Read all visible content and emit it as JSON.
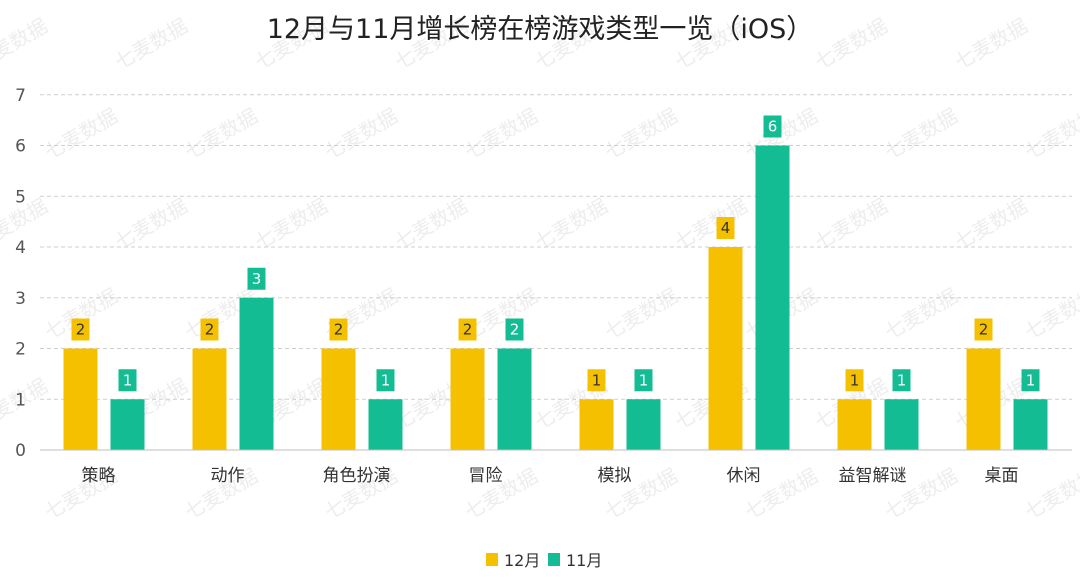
{
  "chart_data": {
    "type": "bar",
    "title": "12月与11月增长榜在榜游戏类型一览（iOS）",
    "categories": [
      "策略",
      "动作",
      "角色扮演",
      "冒险",
      "模拟",
      "休闲",
      "益智解谜",
      "桌面"
    ],
    "series": [
      {
        "name": "12月",
        "color": "#F5C000",
        "values": [
          2,
          2,
          2,
          2,
          1,
          4,
          1,
          2
        ]
      },
      {
        "name": "11月",
        "color": "#13BC92",
        "values": [
          1,
          3,
          1,
          2,
          1,
          6,
          1,
          1
        ]
      }
    ],
    "ylim": [
      0,
      7
    ],
    "yticks": [
      0,
      1,
      2,
      3,
      4,
      5,
      6,
      7
    ],
    "grid": true,
    "data_labels": true,
    "legend_position": "bottom-center",
    "xlabel": "",
    "ylabel": ""
  },
  "watermark": "七麦数据"
}
